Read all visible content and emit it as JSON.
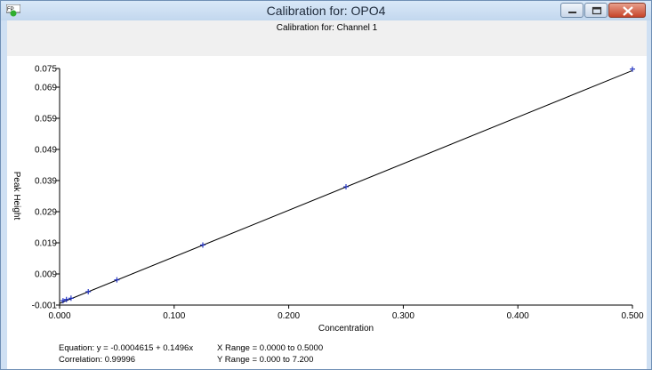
{
  "window": {
    "title": "Calibration for: OPO4",
    "icon": "calibration-app-icon",
    "controls": [
      "minimize-icon",
      "maximize-icon",
      "close-icon"
    ]
  },
  "chart_header": {
    "subtitle": "Calibration for: Channel 1"
  },
  "chart_data": {
    "type": "scatter",
    "title": "",
    "xlabel": "Concentration",
    "ylabel": "Peak Height",
    "xlim": [
      0.0,
      0.5
    ],
    "ylim": [
      -0.001,
      0.075
    ],
    "x_ticks": [
      "0.000",
      "0.100",
      "0.200",
      "0.300",
      "0.400",
      "0.500"
    ],
    "x_tick_values": [
      0.0,
      0.1,
      0.2,
      0.3,
      0.4,
      0.5
    ],
    "y_ticks": [
      "-0.001",
      "0.009",
      "0.019",
      "0.029",
      "0.039",
      "0.049",
      "0.059",
      "0.069",
      "0.075"
    ],
    "y_tick_values": [
      -0.001,
      0.009,
      0.019,
      0.029,
      0.039,
      0.049,
      0.059,
      0.069,
      0.075
    ],
    "grid": false,
    "points": {
      "x": [
        0.003,
        0.006,
        0.01,
        0.025,
        0.05,
        0.125,
        0.25,
        0.5
      ],
      "y": [
        0.0004,
        0.0008,
        0.0012,
        0.0033,
        0.0071,
        0.0183,
        0.037,
        0.0748
      ]
    },
    "fit_line": {
      "intercept": -0.0004615,
      "slope": 0.1496
    },
    "colors": {
      "points": "#1a2bbf",
      "line": "#000000",
      "axes": "#000000"
    }
  },
  "stats": {
    "equation": "Equation: y = -0.0004615 + 0.1496x",
    "correlation": "Correlation: 0.99996",
    "x_range": "X Range = 0.0000 to 0.5000",
    "y_range": "Y Range = 0.000 to 7.200"
  }
}
